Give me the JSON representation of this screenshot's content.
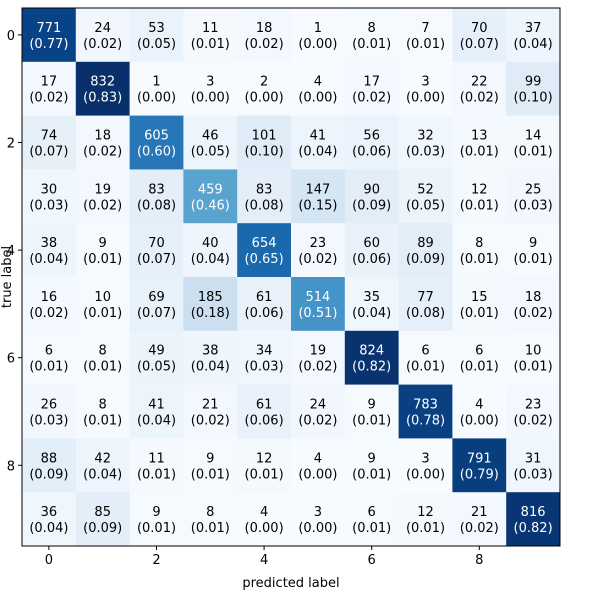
{
  "chart_data": {
    "type": "heatmap",
    "title": "",
    "xlabel": "predicted label",
    "ylabel": "true label",
    "colormap": "Blues",
    "x_tick_labels": [
      "0",
      "2",
      "4",
      "6",
      "8"
    ],
    "x_tick_indices": [
      0,
      2,
      4,
      6,
      8
    ],
    "y_tick_labels": [
      "0",
      "2",
      "4",
      "6",
      "8"
    ],
    "y_tick_indices": [
      0,
      2,
      4,
      6,
      8
    ],
    "counts": [
      [
        771,
        24,
        53,
        11,
        18,
        1,
        8,
        7,
        70,
        37
      ],
      [
        17,
        832,
        1,
        3,
        2,
        4,
        17,
        3,
        22,
        99
      ],
      [
        74,
        18,
        605,
        46,
        101,
        41,
        56,
        32,
        13,
        14
      ],
      [
        30,
        19,
        83,
        459,
        83,
        147,
        90,
        52,
        12,
        25
      ],
      [
        38,
        9,
        70,
        40,
        654,
        23,
        60,
        89,
        8,
        9
      ],
      [
        16,
        10,
        69,
        185,
        61,
        514,
        35,
        77,
        15,
        18
      ],
      [
        6,
        8,
        49,
        38,
        34,
        19,
        824,
        6,
        6,
        10
      ],
      [
        26,
        8,
        41,
        21,
        61,
        24,
        9,
        783,
        4,
        23
      ],
      [
        88,
        42,
        11,
        9,
        12,
        4,
        9,
        3,
        791,
        31
      ],
      [
        36,
        85,
        9,
        8,
        4,
        3,
        6,
        12,
        21,
        816
      ]
    ],
    "fractions": [
      [
        "(0.77)",
        "(0.02)",
        "(0.05)",
        "(0.01)",
        "(0.02)",
        "(0.00)",
        "(0.01)",
        "(0.01)",
        "(0.07)",
        "(0.04)"
      ],
      [
        "(0.02)",
        "(0.83)",
        "(0.00)",
        "(0.00)",
        "(0.00)",
        "(0.00)",
        "(0.02)",
        "(0.00)",
        "(0.02)",
        "(0.10)"
      ],
      [
        "(0.07)",
        "(0.02)",
        "(0.60)",
        "(0.05)",
        "(0.10)",
        "(0.04)",
        "(0.06)",
        "(0.03)",
        "(0.01)",
        "(0.01)"
      ],
      [
        "(0.03)",
        "(0.02)",
        "(0.08)",
        "(0.46)",
        "(0.08)",
        "(0.15)",
        "(0.09)",
        "(0.05)",
        "(0.01)",
        "(0.03)"
      ],
      [
        "(0.04)",
        "(0.01)",
        "(0.07)",
        "(0.04)",
        "(0.65)",
        "(0.02)",
        "(0.06)",
        "(0.09)",
        "(0.01)",
        "(0.01)"
      ],
      [
        "(0.02)",
        "(0.01)",
        "(0.07)",
        "(0.18)",
        "(0.06)",
        "(0.51)",
        "(0.04)",
        "(0.08)",
        "(0.01)",
        "(0.02)"
      ],
      [
        "(0.01)",
        "(0.01)",
        "(0.05)",
        "(0.04)",
        "(0.03)",
        "(0.02)",
        "(0.82)",
        "(0.01)",
        "(0.01)",
        "(0.01)"
      ],
      [
        "(0.03)",
        "(0.01)",
        "(0.04)",
        "(0.02)",
        "(0.06)",
        "(0.02)",
        "(0.01)",
        "(0.78)",
        "(0.00)",
        "(0.02)"
      ],
      [
        "(0.09)",
        "(0.04)",
        "(0.01)",
        "(0.01)",
        "(0.01)",
        "(0.00)",
        "(0.01)",
        "(0.00)",
        "(0.79)",
        "(0.03)"
      ],
      [
        "(0.04)",
        "(0.09)",
        "(0.01)",
        "(0.01)",
        "(0.00)",
        "(0.00)",
        "(0.01)",
        "(0.01)",
        "(0.02)",
        "(0.82)"
      ]
    ]
  }
}
